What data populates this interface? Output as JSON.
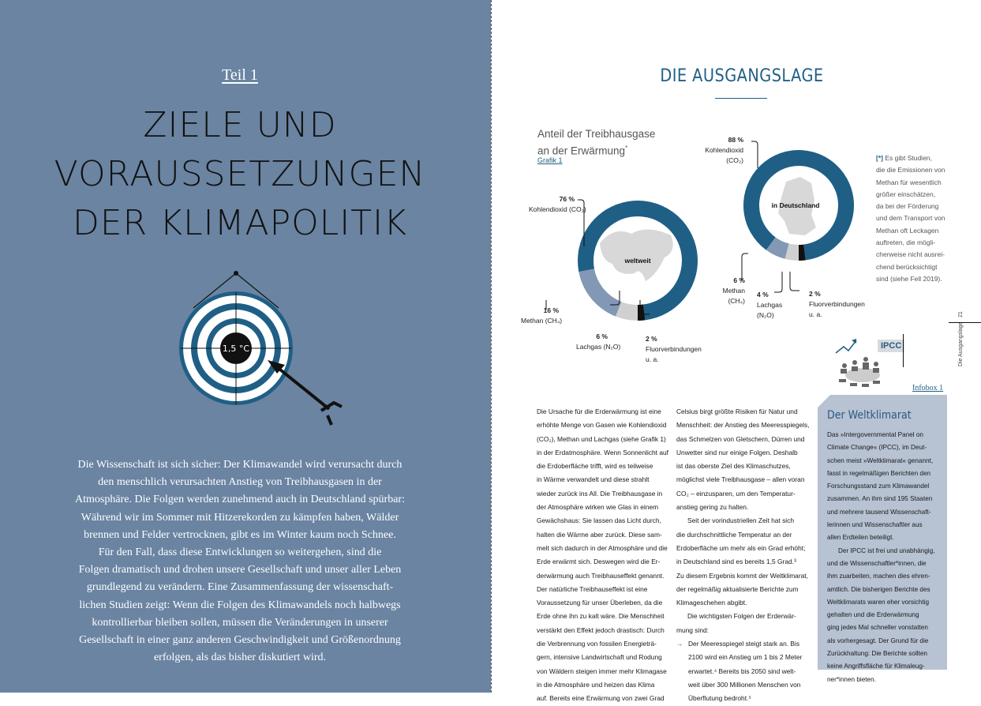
{
  "left_page": {
    "part_label": "Teil 1",
    "title_lines": [
      "ZIELE UND",
      "VORAUSSETZUNGEN",
      "DER KLIMAPOLITIK"
    ],
    "target_label": "1,5 °C",
    "intro_lines": [
      "Die Wissenschaft ist sich sicher: Der Klimawandel wird verursacht durch",
      "den menschlich verursachten Anstieg von Treibhausgasen in der",
      "Atmosphäre. Die Folgen werden zunehmend auch in Deutschland spürbar:",
      "Während wir im Sommer mit Hitzerekorden zu kämpfen haben, Wälder",
      "brennen und Felder vertrocknen, gibt es im Winter kaum noch Schnee.",
      "Für den Fall, dass diese Entwicklungen so weitergehen, sind die",
      "Folgen dramatisch und drohen unsere Gesellschaft und unser aller Leben",
      "grundlegend zu verändern. Eine Zusammenfassung der wissenschaft-",
      "lichen Studien zeigt: Wenn die Folgen des Klimawandels noch halbwegs",
      "kontrollierbar bleiben sollen, müssen die Veränderungen in unserer",
      "Gesellschaft in einer ganz anderen Geschwindigkeit und Größenordnung",
      "erfolgen, als das bisher diskutiert wird."
    ]
  },
  "right_page": {
    "headline": "DIE AUSGANGSLAGE",
    "graphic_title_1": "Anteil der Treibhausgase",
    "graphic_title_2": "an der Erwärmung",
    "graphic_title_star": "*",
    "graphic_link": "Grafik 1",
    "note_marker": "[*]",
    "note_lines": [
      " Es gibt Studien,",
      "die die Emissionen von",
      "Methan für wesentlich",
      "größer einschätzen,",
      "da bei der Förderung",
      "und dem Transport von",
      "Methan oft Leckagen",
      "auftreten, die mögli-",
      "cherweise nicht ausrei-",
      "chend berücksichtigt",
      "sind (siehe Fell 2019)."
    ],
    "column1": [
      "Die Ursache für die Erderwärmung ist eine",
      "erhöhte Menge von Gasen wie Kohlendioxid",
      "(CO₂), Methan und Lachgas (siehe Grafik 1)",
      "in der Erdatmosphäre. Wenn Sonnenlicht auf",
      "die Erdoberfläche trifft, wird es teilweise",
      "in Wärme verwandelt und diese strahlt",
      "wieder zurück ins All. Die Treibhausgase in",
      "der Atmosphäre wirken wie Glas in einem",
      "Gewächshaus: Sie lassen das Licht durch,",
      "halten die Wärme aber zurück. Diese sam-",
      "melt sich dadurch in der Atmosphäre und die",
      "Erde erwärmt sich. Deswegen wird die Er-",
      "derwärmung auch Treibhauseffekt genannt.",
      "Der natürliche Treibhauseffekt ist eine",
      "Voraussetzung für unser Überleben, da die",
      "Erde ohne ihn zu kalt wäre. Die Menschheit",
      "verstärkt den Effekt jedoch drastisch: Durch",
      "die Verbrennung von fossilen Energieträ-",
      "gern, intensive Landwirtschaft und Rodung",
      "von Wäldern steigen immer mehr Klimagase",
      "in die Atmosphäre und heizen das Klima",
      "auf. Bereits eine Erwärmung von zwei Grad"
    ],
    "column2": [
      "Celsius birgt größte Risiken für Natur und",
      "Menschheit: der Anstieg des Meeresspiegels,",
      "das Schmelzen von Gletschern, Dürren und",
      "Unwetter sind nur einige Folgen. Deshalb",
      "ist das oberste Ziel des Klimaschutzes,",
      "möglichst viele Treibhausgase – allen voran",
      "CO₂ – einzusparen, um den Temperatur-",
      "anstieg gering zu halten.",
      "Seit der vorindustriellen Zeit hat sich",
      "die durchschnittliche Temperatur an der",
      "Erdoberfläche um mehr als ein Grad erhöht;",
      "in Deutschland sind es bereits 1,5 Grad.³",
      "Zu diesem Ergebnis kommt der Weltklimarat,",
      "der regelmäßig aktualisierte Berichte zum",
      "Klimageschehen abgibt.",
      "Die wichtigsten Folgen der Erderwär-",
      "mung sind:",
      "Der Meeresspiegel steigt stark an. Bis",
      "2100 wird ein Anstieg um 1 bis 2 Meter",
      "erwartet.⁴ Bereits bis 2050 sind welt-",
      "weit über 300 Millionen Menschen von",
      "Überflutung bedroht.⁵"
    ],
    "bullet_arrow": "→",
    "infobox": {
      "link": "Infobox 1",
      "badge": "IPCC",
      "title": "Der Weltklimarat",
      "lines": [
        "Das »Intergovernmental Panel on",
        "Climate Change« (IPCC), im Deut-",
        "schen meist »Weltklimarat« genannt,",
        "fasst in regelmäßigen Berichten den",
        "Forschungsstand zum Klimawandel",
        "zusammen. An ihm sind 195 Staaten",
        "und mehrere tausend Wissenschaft-",
        "lerinnen und Wissenschaftler aus",
        "allen Erdteilen beteiligt.",
        "Der IPCC ist frei und unabhängig,",
        "und die Wissenschaftler*innen, die",
        "ihm zuarbeiten, machen dies ehren-",
        "amtlich. Die bisherigen Berichte des",
        "Weltklimarats waren eher vorsichtig",
        "gehalten und die Erderwärmung",
        "ging jedes Mal schneller vonstatten",
        "als vorhergesagt. Der Grund für die",
        "Zurückhaltung: Die Berichte sollten",
        "keine Angriffsfläche für Klimaleug-",
        "ner*innen bieten."
      ]
    },
    "page_number": "21",
    "running_head": "Die Ausgangslage"
  },
  "chart_data": [
    {
      "type": "pie",
      "title": "weltweit",
      "categories": [
        "Kohlendioxid (CO₂)",
        "Methan (CH₄)",
        "Lachgas (N₂O)",
        "Fluorverbindungen u. a."
      ],
      "values": [
        76,
        16,
        6,
        2
      ],
      "value_labels": [
        "76 %",
        "16 %",
        "6 %",
        "2 %"
      ],
      "colors": [
        "#1f5f85",
        "#8298b5",
        "#d0d0d0",
        "#111111"
      ]
    },
    {
      "type": "pie",
      "title": "in Deutschland",
      "categories": [
        "Kohlendioxid (CO₂)",
        "Methan (CH₄)",
        "Lachgas (N₂O)",
        "Fluorverbindungen u. a."
      ],
      "values": [
        88,
        6,
        4,
        2
      ],
      "value_labels": [
        "88 %",
        "6 %",
        "4 %",
        "2 %"
      ],
      "colors": [
        "#1f5f85",
        "#8298b5",
        "#d0d0d0",
        "#111111"
      ]
    }
  ]
}
